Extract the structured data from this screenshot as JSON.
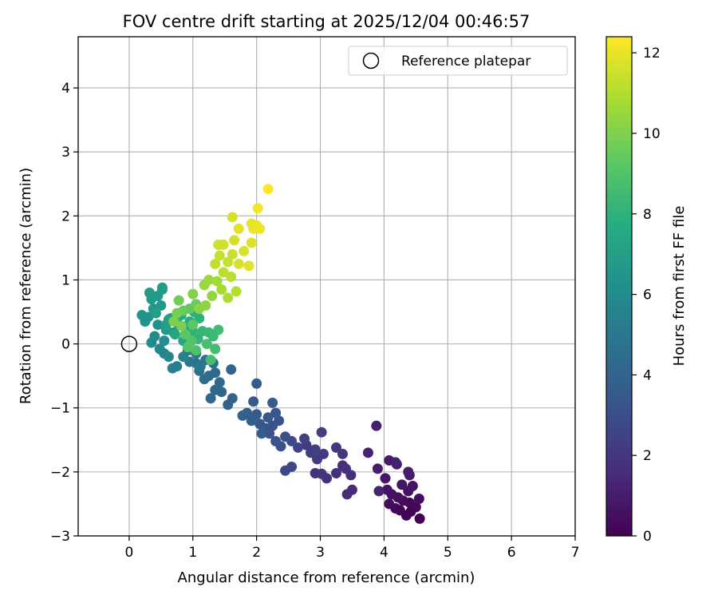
{
  "chart_data": {
    "type": "scatter",
    "title": "FOV centre drift starting at 2025/12/04 00:46:57",
    "xlabel": "Angular distance from reference (arcmin)",
    "ylabel": "Rotation from reference (arcmin)",
    "xlim": [
      -0.8,
      7
    ],
    "ylim": [
      -3,
      4.8
    ],
    "xticks": [
      0,
      1,
      2,
      3,
      4,
      5,
      6,
      7
    ],
    "yticks": [
      -3,
      -2,
      -1,
      0,
      1,
      2,
      3,
      4
    ],
    "xtick_labels": [
      "0",
      "1",
      "2",
      "3",
      "4",
      "5",
      "6",
      "7"
    ],
    "ytick_labels": [
      "−3",
      "−2",
      "−1",
      "0",
      "1",
      "2",
      "3",
      "4"
    ],
    "grid": true,
    "legend": {
      "placement": "top-right",
      "entries": [
        "Reference platepar"
      ]
    },
    "reference_point": {
      "x": 0,
      "y": 0,
      "label": "Reference platepar"
    },
    "colorbar": {
      "label": "Hours from first FF file",
      "colormap": "viridis",
      "range": [
        0,
        12.4
      ],
      "ticks": [
        0,
        2,
        4,
        6,
        8,
        10,
        12
      ],
      "tick_labels": [
        "0",
        "2",
        "4",
        "6",
        "8",
        "10",
        "12"
      ]
    },
    "series": [
      {
        "name": "FOV centre drift",
        "points": [
          {
            "x": 4.56,
            "y": -2.73,
            "h": 0.0
          },
          {
            "x": 4.35,
            "y": -2.68,
            "h": 0.05
          },
          {
            "x": 4.42,
            "y": -2.62,
            "h": 0.1
          },
          {
            "x": 4.25,
            "y": -2.6,
            "h": 0.15
          },
          {
            "x": 4.5,
            "y": -2.55,
            "h": 0.2
          },
          {
            "x": 4.18,
            "y": -2.57,
            "h": 0.25
          },
          {
            "x": 4.4,
            "y": -2.48,
            "h": 0.3
          },
          {
            "x": 4.08,
            "y": -2.5,
            "h": 0.35
          },
          {
            "x": 4.3,
            "y": -2.45,
            "h": 0.4
          },
          {
            "x": 4.55,
            "y": -2.42,
            "h": 0.45
          },
          {
            "x": 4.22,
            "y": -2.4,
            "h": 0.5
          },
          {
            "x": 4.12,
            "y": -2.35,
            "h": 0.55
          },
          {
            "x": 4.38,
            "y": -2.3,
            "h": 0.6
          },
          {
            "x": 4.05,
            "y": -2.28,
            "h": 0.65
          },
          {
            "x": 4.45,
            "y": -2.22,
            "h": 0.7
          },
          {
            "x": 4.28,
            "y": -2.2,
            "h": 0.75
          },
          {
            "x": 4.02,
            "y": -2.1,
            "h": 0.8
          },
          {
            "x": 4.4,
            "y": -2.05,
            "h": 0.85
          },
          {
            "x": 4.2,
            "y": -1.88,
            "h": 0.9
          },
          {
            "x": 4.08,
            "y": -1.82,
            "h": 0.95
          },
          {
            "x": 3.9,
            "y": -1.95,
            "h": 1.0
          },
          {
            "x": 4.38,
            "y": -2.0,
            "h": 1.05
          },
          {
            "x": 3.88,
            "y": -1.28,
            "h": 1.1
          },
          {
            "x": 4.18,
            "y": -1.85,
            "h": 1.15
          },
          {
            "x": 3.75,
            "y": -1.7,
            "h": 1.2
          },
          {
            "x": 3.92,
            "y": -2.3,
            "h": 1.25
          },
          {
            "x": 3.42,
            "y": -2.35,
            "h": 1.5
          },
          {
            "x": 3.5,
            "y": -2.28,
            "h": 1.55
          },
          {
            "x": 3.48,
            "y": -2.05,
            "h": 1.6
          },
          {
            "x": 3.35,
            "y": -1.9,
            "h": 1.65
          },
          {
            "x": 3.25,
            "y": -2.02,
            "h": 1.7
          },
          {
            "x": 3.4,
            "y": -1.95,
            "h": 1.75
          },
          {
            "x": 3.1,
            "y": -2.1,
            "h": 1.8
          },
          {
            "x": 3.02,
            "y": -2.03,
            "h": 1.85
          },
          {
            "x": 2.92,
            "y": -2.02,
            "h": 1.9
          },
          {
            "x": 3.35,
            "y": -1.72,
            "h": 2.0
          },
          {
            "x": 3.25,
            "y": -1.62,
            "h": 2.05
          },
          {
            "x": 3.05,
            "y": -1.72,
            "h": 2.1
          },
          {
            "x": 2.95,
            "y": -1.8,
            "h": 2.15
          },
          {
            "x": 2.85,
            "y": -1.7,
            "h": 2.2
          },
          {
            "x": 2.78,
            "y": -1.58,
            "h": 2.25
          },
          {
            "x": 3.02,
            "y": -1.38,
            "h": 2.3
          },
          {
            "x": 2.92,
            "y": -1.65,
            "h": 2.35
          },
          {
            "x": 2.75,
            "y": -1.48,
            "h": 2.4
          },
          {
            "x": 2.65,
            "y": -1.62,
            "h": 2.5
          },
          {
            "x": 2.55,
            "y": -1.92,
            "h": 2.7
          },
          {
            "x": 2.45,
            "y": -1.98,
            "h": 2.8
          },
          {
            "x": 2.55,
            "y": -1.52,
            "h": 2.9
          },
          {
            "x": 2.45,
            "y": -1.45,
            "h": 3.0
          },
          {
            "x": 2.38,
            "y": -1.6,
            "h": 3.05
          },
          {
            "x": 2.3,
            "y": -1.52,
            "h": 3.1
          },
          {
            "x": 2.2,
            "y": -1.4,
            "h": 3.15
          },
          {
            "x": 2.35,
            "y": -1.2,
            "h": 3.2
          },
          {
            "x": 2.25,
            "y": -1.28,
            "h": 3.25
          },
          {
            "x": 2.15,
            "y": -1.32,
            "h": 3.3
          },
          {
            "x": 2.05,
            "y": -1.25,
            "h": 3.35
          },
          {
            "x": 2.3,
            "y": -1.08,
            "h": 3.4
          },
          {
            "x": 2.18,
            "y": -1.15,
            "h": 3.45
          },
          {
            "x": 2.0,
            "y": -1.1,
            "h": 3.5
          },
          {
            "x": 1.95,
            "y": -0.9,
            "h": 3.55
          },
          {
            "x": 2.25,
            "y": -0.92,
            "h": 3.6
          },
          {
            "x": 2.08,
            "y": -1.4,
            "h": 3.65
          },
          {
            "x": 2.0,
            "y": -0.62,
            "h": 3.7
          },
          {
            "x": 1.92,
            "y": -1.2,
            "h": 3.75
          },
          {
            "x": 1.85,
            "y": -1.08,
            "h": 3.8
          },
          {
            "x": 1.78,
            "y": -1.12,
            "h": 3.85
          },
          {
            "x": 1.62,
            "y": -0.85,
            "h": 3.9
          },
          {
            "x": 1.55,
            "y": -0.95,
            "h": 3.95
          },
          {
            "x": 1.6,
            "y": -0.4,
            "h": 4.0
          },
          {
            "x": 1.45,
            "y": -0.75,
            "h": 4.05
          },
          {
            "x": 1.35,
            "y": -0.72,
            "h": 4.1
          },
          {
            "x": 1.28,
            "y": -0.85,
            "h": 4.15
          },
          {
            "x": 1.42,
            "y": -0.6,
            "h": 4.2
          },
          {
            "x": 1.35,
            "y": -0.45,
            "h": 4.25
          },
          {
            "x": 1.25,
            "y": -0.5,
            "h": 4.3
          },
          {
            "x": 1.18,
            "y": -0.55,
            "h": 4.4
          },
          {
            "x": 1.1,
            "y": -0.42,
            "h": 4.5
          },
          {
            "x": 1.32,
            "y": -0.3,
            "h": 4.6
          },
          {
            "x": 1.2,
            "y": -0.25,
            "h": 4.7
          },
          {
            "x": 1.05,
            "y": -0.3,
            "h": 4.8
          },
          {
            "x": 0.95,
            "y": -0.28,
            "h": 4.9
          },
          {
            "x": 1.12,
            "y": -0.35,
            "h": 5.0
          },
          {
            "x": 1.05,
            "y": -0.15,
            "h": 5.1
          },
          {
            "x": 0.92,
            "y": -0.1,
            "h": 5.2
          },
          {
            "x": 0.75,
            "y": -0.35,
            "h": 5.3
          },
          {
            "x": 0.68,
            "y": -0.38,
            "h": 5.4
          },
          {
            "x": 0.85,
            "y": -0.2,
            "h": 5.5
          },
          {
            "x": 0.55,
            "y": -0.15,
            "h": 5.6
          },
          {
            "x": 0.48,
            "y": -0.08,
            "h": 5.7
          },
          {
            "x": 0.62,
            "y": -0.2,
            "h": 5.8
          },
          {
            "x": 0.35,
            "y": 0.02,
            "h": 5.9
          },
          {
            "x": 0.4,
            "y": 0.12,
            "h": 6.0
          },
          {
            "x": 0.55,
            "y": 0.05,
            "h": 6.1
          },
          {
            "x": 0.7,
            "y": 0.18,
            "h": 6.2
          },
          {
            "x": 0.45,
            "y": 0.3,
            "h": 6.3
          },
          {
            "x": 0.3,
            "y": 0.42,
            "h": 6.35
          },
          {
            "x": 0.25,
            "y": 0.35,
            "h": 6.4
          },
          {
            "x": 0.2,
            "y": 0.45,
            "h": 6.45
          },
          {
            "x": 0.38,
            "y": 0.55,
            "h": 6.5
          },
          {
            "x": 0.5,
            "y": 0.6,
            "h": 6.55
          },
          {
            "x": 0.62,
            "y": 0.38,
            "h": 6.6
          },
          {
            "x": 0.58,
            "y": 0.22,
            "h": 6.65
          },
          {
            "x": 0.35,
            "y": 0.7,
            "h": 6.7
          },
          {
            "x": 0.45,
            "y": 0.75,
            "h": 6.75
          },
          {
            "x": 0.32,
            "y": 0.8,
            "h": 6.8
          },
          {
            "x": 0.52,
            "y": 0.85,
            "h": 6.85
          },
          {
            "x": 0.52,
            "y": 0.88,
            "h": 6.9
          },
          {
            "x": 0.42,
            "y": 0.48,
            "h": 7.0
          },
          {
            "x": 0.58,
            "y": 0.3,
            "h": 7.05
          },
          {
            "x": 0.65,
            "y": 0.4,
            "h": 7.1
          },
          {
            "x": 0.78,
            "y": 0.3,
            "h": 7.2
          },
          {
            "x": 0.72,
            "y": 0.15,
            "h": 7.3
          },
          {
            "x": 0.85,
            "y": 0.05,
            "h": 7.4
          },
          {
            "x": 0.9,
            "y": 0.25,
            "h": 7.5
          },
          {
            "x": 0.82,
            "y": 0.45,
            "h": 7.6
          },
          {
            "x": 0.95,
            "y": 0.35,
            "h": 7.7
          },
          {
            "x": 1.02,
            "y": 0.5,
            "h": 7.8
          },
          {
            "x": 1.1,
            "y": 0.4,
            "h": 7.9
          },
          {
            "x": 1.0,
            "y": 0.2,
            "h": 8.0
          },
          {
            "x": 1.08,
            "y": 0.08,
            "h": 8.1
          },
          {
            "x": 1.15,
            "y": 0.2,
            "h": 8.2
          },
          {
            "x": 1.25,
            "y": 0.18,
            "h": 8.3
          },
          {
            "x": 1.32,
            "y": 0.12,
            "h": 8.4
          },
          {
            "x": 1.4,
            "y": 0.22,
            "h": 8.5
          },
          {
            "x": 1.35,
            "y": -0.08,
            "h": 8.6
          },
          {
            "x": 1.28,
            "y": -0.25,
            "h": 8.7
          },
          {
            "x": 1.22,
            "y": 0.0,
            "h": 8.8
          },
          {
            "x": 1.05,
            "y": -0.1,
            "h": 8.9
          },
          {
            "x": 0.98,
            "y": 0.05,
            "h": 9.0
          },
          {
            "x": 0.92,
            "y": -0.05,
            "h": 9.1
          },
          {
            "x": 0.88,
            "y": 0.15,
            "h": 9.2
          },
          {
            "x": 1.0,
            "y": 0.3,
            "h": 9.3
          },
          {
            "x": 0.95,
            "y": 0.55,
            "h": 9.4
          },
          {
            "x": 0.85,
            "y": 0.52,
            "h": 9.5
          },
          {
            "x": 1.05,
            "y": 0.62,
            "h": 9.6
          },
          {
            "x": 0.78,
            "y": 0.68,
            "h": 9.7
          },
          {
            "x": 0.75,
            "y": 0.48,
            "h": 9.8
          },
          {
            "x": 0.82,
            "y": 0.28,
            "h": 9.9
          },
          {
            "x": 0.7,
            "y": 0.35,
            "h": 10.0
          },
          {
            "x": 1.0,
            "y": 0.78,
            "h": 10.1
          },
          {
            "x": 1.1,
            "y": 0.55,
            "h": 10.2
          },
          {
            "x": 1.2,
            "y": 0.6,
            "h": 10.3
          },
          {
            "x": 1.3,
            "y": 0.75,
            "h": 10.4
          },
          {
            "x": 1.18,
            "y": 0.92,
            "h": 10.5
          },
          {
            "x": 1.25,
            "y": 1.0,
            "h": 10.6
          },
          {
            "x": 1.38,
            "y": 0.98,
            "h": 10.7
          },
          {
            "x": 1.45,
            "y": 0.85,
            "h": 10.8
          },
          {
            "x": 1.55,
            "y": 0.72,
            "h": 10.9
          },
          {
            "x": 1.68,
            "y": 0.82,
            "h": 11.0
          },
          {
            "x": 1.6,
            "y": 1.05,
            "h": 11.1
          },
          {
            "x": 1.48,
            "y": 1.12,
            "h": 11.2
          },
          {
            "x": 1.35,
            "y": 1.25,
            "h": 11.3
          },
          {
            "x": 1.42,
            "y": 1.38,
            "h": 11.35
          },
          {
            "x": 1.55,
            "y": 1.28,
            "h": 11.4
          },
          {
            "x": 1.62,
            "y": 1.4,
            "h": 11.45
          },
          {
            "x": 1.4,
            "y": 1.55,
            "h": 11.5
          },
          {
            "x": 1.48,
            "y": 1.55,
            "h": 11.55
          },
          {
            "x": 1.65,
            "y": 1.62,
            "h": 11.6
          },
          {
            "x": 1.62,
            "y": 1.98,
            "h": 11.65
          },
          {
            "x": 1.72,
            "y": 1.25,
            "h": 11.7
          },
          {
            "x": 1.8,
            "y": 1.45,
            "h": 11.75
          },
          {
            "x": 1.92,
            "y": 1.58,
            "h": 11.8
          },
          {
            "x": 1.88,
            "y": 1.22,
            "h": 11.85
          },
          {
            "x": 1.72,
            "y": 1.8,
            "h": 11.9
          },
          {
            "x": 1.92,
            "y": 1.88,
            "h": 11.95
          },
          {
            "x": 2.0,
            "y": 1.85,
            "h": 12.0
          },
          {
            "x": 1.95,
            "y": 1.8,
            "h": 12.05
          },
          {
            "x": 2.05,
            "y": 1.8,
            "h": 12.1
          },
          {
            "x": 2.02,
            "y": 2.12,
            "h": 12.2
          },
          {
            "x": 2.18,
            "y": 2.42,
            "h": 12.4
          }
        ]
      }
    ]
  }
}
